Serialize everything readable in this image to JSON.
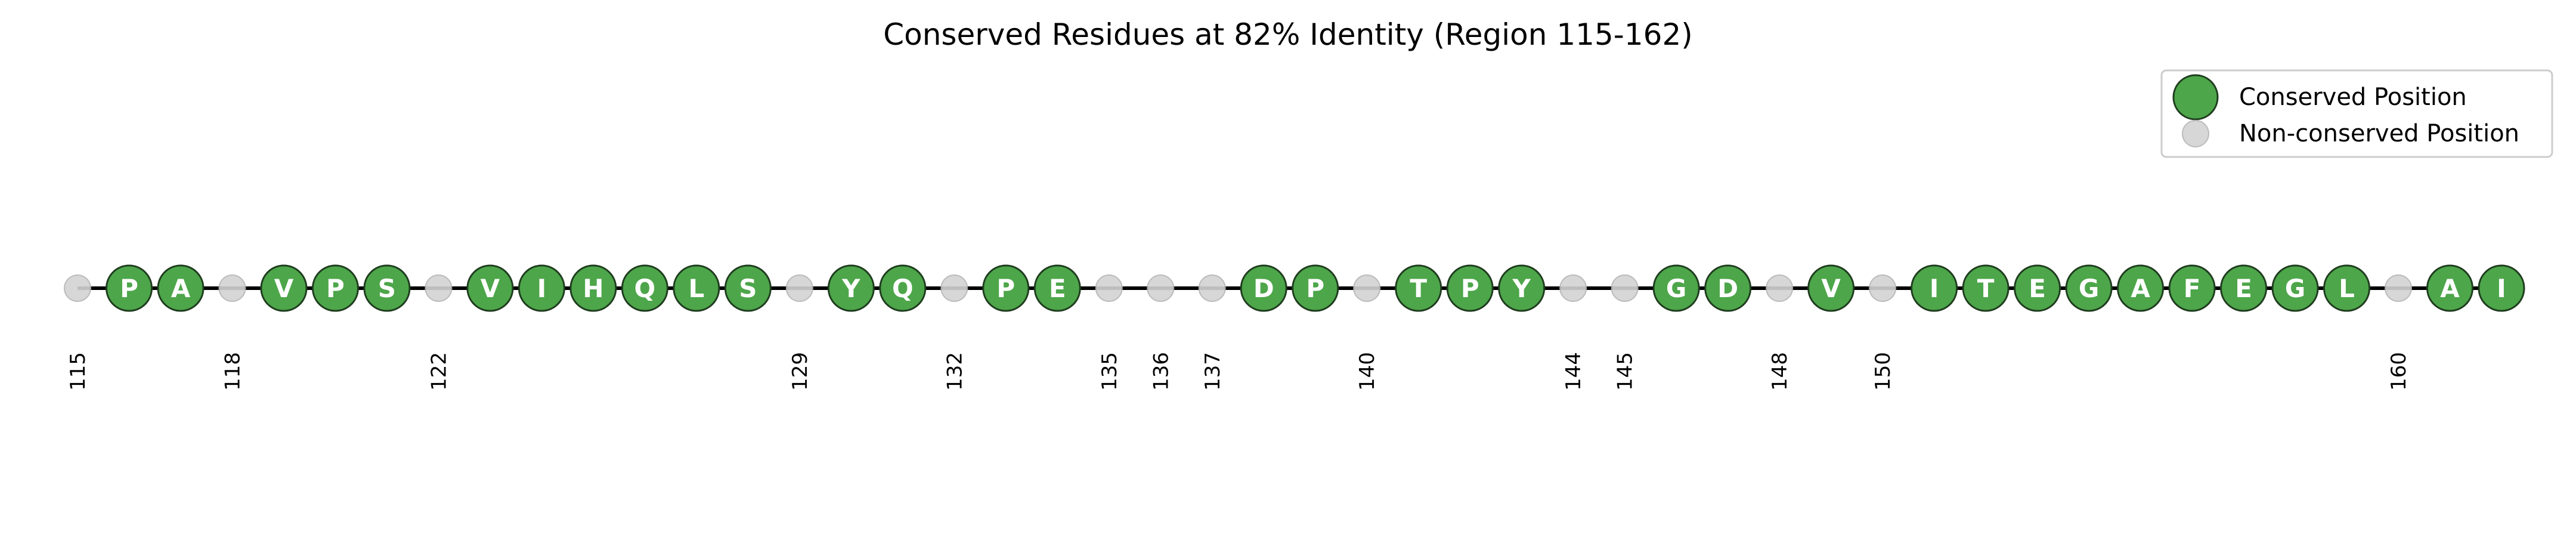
{
  "chart_data": {
    "type": "scatter",
    "title": "Conserved Residues at 82% Identity (Region 115-162)",
    "xlim": [
      115,
      162
    ],
    "legend": {
      "placement": "top-right",
      "entries": [
        {
          "label": "Conserved Position",
          "color": "#4da64a"
        },
        {
          "label": "Non-conserved Position",
          "color": "#d3d3d3"
        }
      ]
    },
    "colors": {
      "conserved": "#4da64a",
      "conserved_edge": "#1f3d1f",
      "nonconserved": "#d3d3d3",
      "nonconserved_edge": "#b5b5b5",
      "line": "#000000"
    },
    "positions": [
      {
        "pos": 115,
        "residue": null
      },
      {
        "pos": 116,
        "residue": "P"
      },
      {
        "pos": 117,
        "residue": "A"
      },
      {
        "pos": 118,
        "residue": null
      },
      {
        "pos": 119,
        "residue": "V"
      },
      {
        "pos": 120,
        "residue": "P"
      },
      {
        "pos": 121,
        "residue": "S"
      },
      {
        "pos": 122,
        "residue": null
      },
      {
        "pos": 123,
        "residue": "V"
      },
      {
        "pos": 124,
        "residue": "I"
      },
      {
        "pos": 125,
        "residue": "H"
      },
      {
        "pos": 126,
        "residue": "Q"
      },
      {
        "pos": 127,
        "residue": "L"
      },
      {
        "pos": 128,
        "residue": "S"
      },
      {
        "pos": 129,
        "residue": null
      },
      {
        "pos": 130,
        "residue": "Y"
      },
      {
        "pos": 131,
        "residue": "Q"
      },
      {
        "pos": 132,
        "residue": null
      },
      {
        "pos": 133,
        "residue": "P"
      },
      {
        "pos": 134,
        "residue": "E"
      },
      {
        "pos": 135,
        "residue": null
      },
      {
        "pos": 136,
        "residue": null
      },
      {
        "pos": 137,
        "residue": null
      },
      {
        "pos": 138,
        "residue": "D"
      },
      {
        "pos": 139,
        "residue": "P"
      },
      {
        "pos": 140,
        "residue": null
      },
      {
        "pos": 141,
        "residue": "T"
      },
      {
        "pos": 142,
        "residue": "P"
      },
      {
        "pos": 143,
        "residue": "Y"
      },
      {
        "pos": 144,
        "residue": null
      },
      {
        "pos": 145,
        "residue": null
      },
      {
        "pos": 146,
        "residue": "G"
      },
      {
        "pos": 147,
        "residue": "D"
      },
      {
        "pos": 148,
        "residue": null
      },
      {
        "pos": 149,
        "residue": "V"
      },
      {
        "pos": 150,
        "residue": null
      },
      {
        "pos": 151,
        "residue": "I"
      },
      {
        "pos": 152,
        "residue": "T"
      },
      {
        "pos": 153,
        "residue": "E"
      },
      {
        "pos": 154,
        "residue": "G"
      },
      {
        "pos": 155,
        "residue": "A"
      },
      {
        "pos": 156,
        "residue": "F"
      },
      {
        "pos": 157,
        "residue": "E"
      },
      {
        "pos": 158,
        "residue": "G"
      },
      {
        "pos": 159,
        "residue": "L"
      },
      {
        "pos": 160,
        "residue": null
      },
      {
        "pos": 161,
        "residue": "A"
      },
      {
        "pos": 162,
        "residue": "I"
      }
    ]
  }
}
